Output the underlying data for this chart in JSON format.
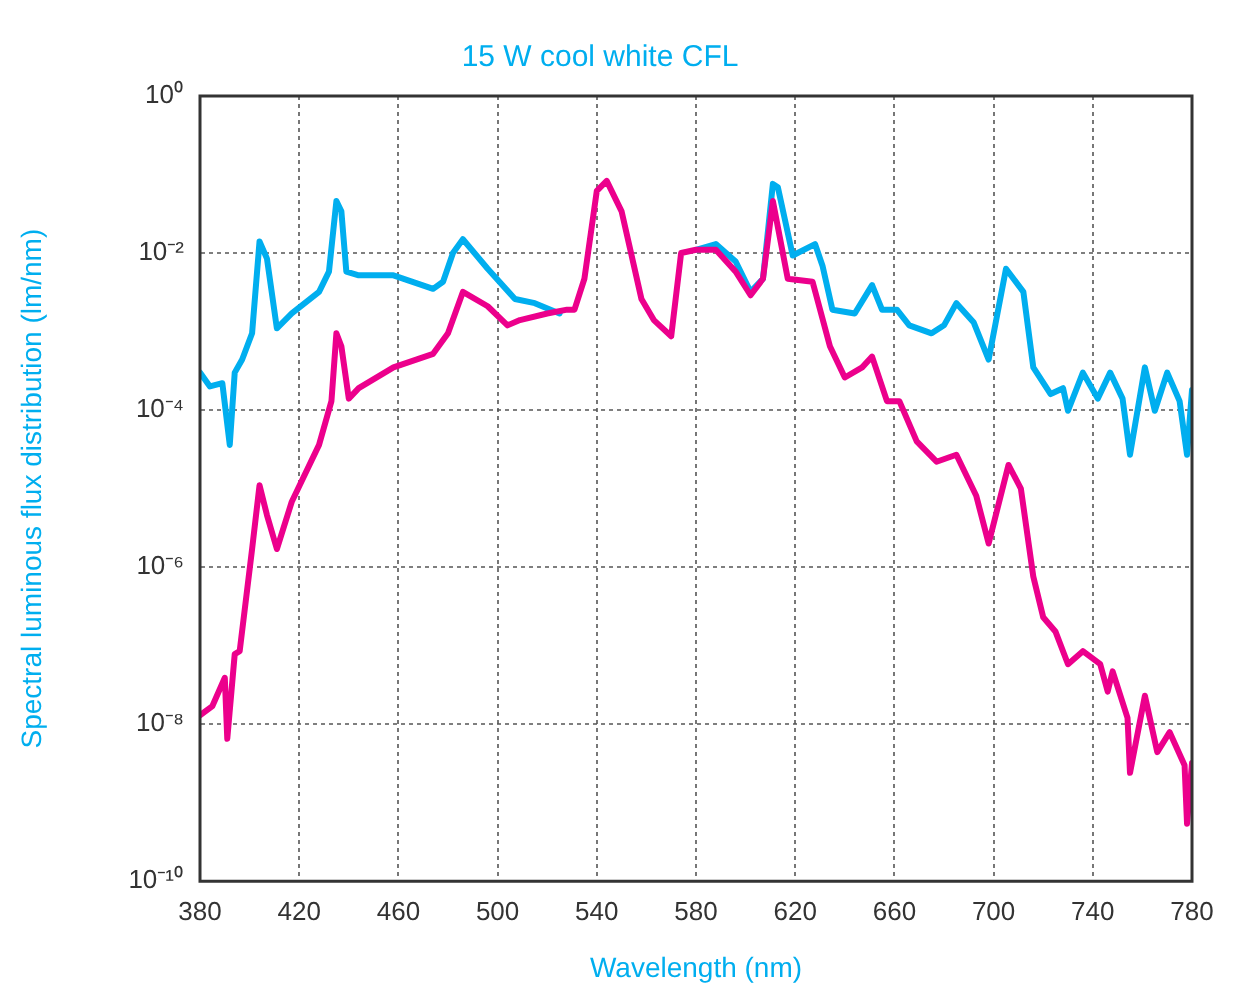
{
  "chart_data": {
    "type": "line",
    "title": "15 W cool white CFL",
    "xlabel": "Wavelength (nm)",
    "ylabel": "Spectral luminous flux distribution (lm/nm)",
    "log": "y",
    "grid": true,
    "xlim": [
      380,
      780
    ],
    "xticks": [
      380,
      420,
      460,
      500,
      540,
      580,
      620,
      660,
      700,
      740,
      780
    ],
    "ylim": [
      1e-10,
      1
    ],
    "yticks": [
      {
        "value": 1e-10,
        "label": "10⁻¹⁰"
      },
      {
        "value": 1e-08,
        "label": "10⁻⁸"
      },
      {
        "value": 1e-06,
        "label": "10⁻⁶"
      },
      {
        "value": 0.0001,
        "label": "10⁻⁴"
      },
      {
        "value": 0.01,
        "label": "10⁻²"
      },
      {
        "value": 1,
        "label": "10⁰"
      }
    ],
    "series": [
      {
        "color": "#00aeef",
        "x": [
          380,
          384,
          389,
          392,
          394,
          397,
          401,
          404,
          407,
          411,
          417,
          428,
          432,
          435,
          437,
          439,
          444,
          458,
          474,
          478,
          482,
          486,
          496,
          507,
          515,
          525,
          531,
          535,
          540,
          544,
          550,
          558,
          563,
          570,
          574,
          580,
          588,
          596,
          602,
          607,
          611,
          613,
          619,
          628,
          631,
          635,
          644,
          651,
          655,
          661,
          666,
          675,
          680,
          685,
          692,
          698,
          705,
          712,
          716,
          723,
          728,
          730,
          736,
          742,
          747,
          752,
          755,
          761,
          765,
          770,
          775,
          778,
          780
        ],
        "values": [
          0.0003,
          0.0002,
          0.00022,
          3.6e-05,
          0.0003,
          0.00044,
          0.00095,
          0.014,
          0.0085,
          0.0011,
          0.0017,
          0.0032,
          0.0058,
          0.046,
          0.034,
          0.0058,
          0.0052,
          0.0052,
          0.0035,
          0.0043,
          0.01,
          0.015,
          0.0063,
          0.0026,
          0.0023,
          0.0017,
          null,
          null,
          null,
          null,
          null,
          null,
          null,
          null,
          null,
          0.011,
          0.013,
          0.0078,
          0.0032,
          0.0047,
          0.076,
          0.069,
          0.0093,
          0.013,
          0.0069,
          0.0019,
          0.0017,
          0.0039,
          0.0019,
          0.0019,
          0.0012,
          0.00095,
          0.0012,
          0.0023,
          0.0013,
          0.00044,
          0.0063,
          0.0032,
          0.00035,
          0.00016,
          0.00019,
          9.8e-05,
          0.0003,
          0.00014,
          0.0003,
          0.00014,
          2.7e-05,
          0.00035,
          9.8e-05,
          0.0003,
          0.00013,
          2.7e-05,
          0.00018
        ]
      },
      {
        "color": "#ec008c",
        "x": [
          380,
          385,
          390,
          391,
          394,
          396,
          401,
          404,
          407,
          411,
          417,
          428,
          433,
          435,
          437,
          440,
          444,
          458,
          474,
          480,
          486,
          496,
          504,
          509,
          520,
          528,
          531,
          535,
          540,
          544,
          550,
          558,
          563,
          570,
          574,
          580,
          588,
          596,
          602,
          607,
          611,
          617,
          627,
          634,
          640,
          647,
          651,
          657,
          662,
          669,
          677,
          685,
          693,
          698,
          706,
          711,
          716,
          720,
          725,
          730,
          736,
          743,
          746,
          748,
          754,
          755,
          761,
          766,
          771,
          777,
          778,
          780
        ],
        "values": [
          1.3e-08,
          1.7e-08,
          3.9e-08,
          6.5e-09,
          7.8e-08,
          8.5e-08,
          1.7e-06,
          1.1e-05,
          4.6e-06,
          1.7e-06,
          6.8e-06,
          3.6e-05,
          0.00013,
          0.00095,
          0.00065,
          0.00014,
          0.00019,
          0.00035,
          0.00052,
          0.00095,
          0.0032,
          0.0021,
          0.0012,
          0.0014,
          0.0017,
          0.0019,
          0.0019,
          0.0047,
          0.062,
          0.083,
          0.034,
          0.0026,
          0.0014,
          0.00087,
          0.01,
          0.011,
          0.011,
          0.0058,
          0.0029,
          0.0047,
          0.046,
          0.0047,
          0.0043,
          0.00065,
          0.00026,
          0.00035,
          0.00048,
          0.00013,
          0.00013,
          4e-05,
          2.2e-05,
          2.7e-05,
          8.1e-06,
          2e-06,
          2e-05,
          1e-05,
          7.6e-07,
          2.3e-07,
          1.5e-07,
          5.8e-08,
          8.5e-08,
          5.8e-08,
          2.6e-08,
          4.7e-08,
          1.2e-08,
          2.4e-09,
          2.3e-08,
          4.4e-09,
          7.9e-09,
          3e-09,
          5.4e-10,
          3.2e-09
        ]
      }
    ]
  }
}
